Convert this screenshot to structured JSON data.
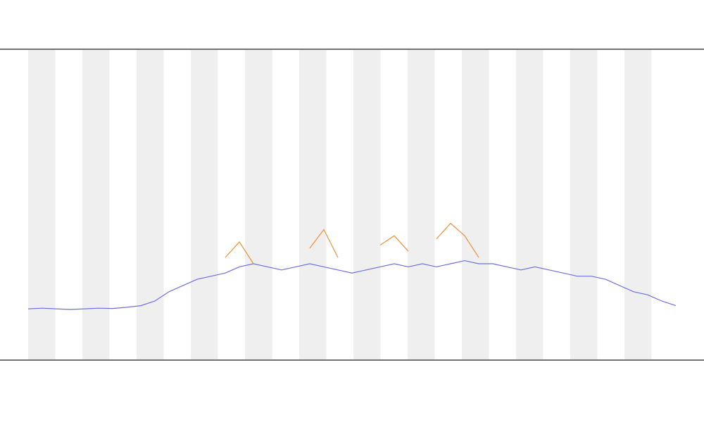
{
  "chart_data": {
    "type": "line",
    "categories": [
      null,
      null,
      null,
      null,
      null,
      null,
      null,
      null,
      null,
      null,
      null,
      null,
      null,
      null,
      null,
      null,
      null,
      null,
      null,
      null,
      null,
      null,
      null,
      null,
      null,
      null,
      null,
      null,
      null,
      null,
      null,
      null,
      null,
      null,
      null,
      null,
      null,
      null,
      null,
      null,
      null,
      null,
      null,
      null,
      null,
      null,
      null
    ],
    "series": [
      {
        "color": "#6f6fe0",
        "values": [
          16.5,
          16.7,
          16.5,
          16.3,
          16.5,
          16.7,
          16.6,
          17,
          17.5,
          19,
          22,
          24,
          26,
          27,
          28,
          30,
          31,
          30,
          29,
          30,
          31,
          30,
          29,
          28,
          29,
          30,
          31,
          30,
          31,
          30,
          31,
          32,
          31,
          31,
          30,
          29,
          30,
          29,
          28,
          27,
          27,
          26,
          24,
          22,
          21,
          19,
          17.5
        ]
      },
      {
        "color": "#f0913a",
        "values": [
          null,
          null,
          null,
          null,
          null,
          null,
          null,
          null,
          null,
          null,
          null,
          null,
          null,
          null,
          33,
          38,
          31,
          null,
          null,
          null,
          36,
          42,
          33,
          null,
          null,
          37,
          40,
          35,
          null,
          39,
          44,
          40,
          33,
          null,
          null,
          null,
          null,
          null,
          null,
          null,
          null,
          null,
          null,
          null,
          null,
          null,
          null
        ]
      }
    ],
    "ylim": [
      0,
      100
    ]
  }
}
